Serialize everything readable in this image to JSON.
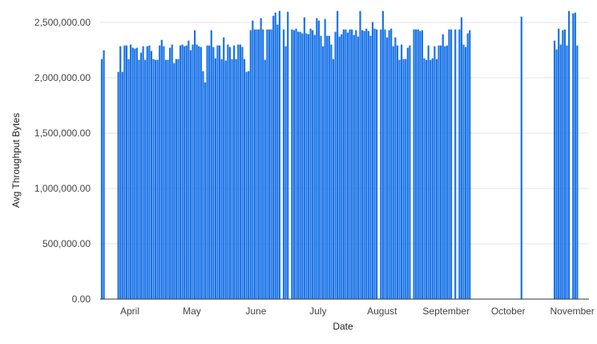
{
  "chart_data": {
    "type": "bar",
    "title": "",
    "xlabel": "Date",
    "ylabel": "Avg Throughput Bytes",
    "ylim": [
      0,
      2600000
    ],
    "grid": true,
    "legend": "none",
    "bar_color": "#1a73e8",
    "x_unit": "day index (0 = first bar, ~Mar 18)",
    "y_ticks": [
      {
        "value": 0,
        "label": "0.00"
      },
      {
        "value": 500000,
        "label": "500,000.00"
      },
      {
        "value": 1000000,
        "label": "1,000,000.00"
      },
      {
        "value": 1500000,
        "label": "1,500,000.00"
      },
      {
        "value": 2000000,
        "label": "2,000,000.00"
      },
      {
        "value": 2500000,
        "label": "2,500,000.00"
      }
    ],
    "x_ticks": [
      {
        "day": 14,
        "label": "April"
      },
      {
        "day": 44,
        "label": "May"
      },
      {
        "day": 75,
        "label": "June"
      },
      {
        "day": 105,
        "label": "July"
      },
      {
        "day": 136,
        "label": "August"
      },
      {
        "day": 167,
        "label": "September"
      },
      {
        "day": 197,
        "label": "October"
      },
      {
        "day": 228,
        "label": "November"
      }
    ],
    "values": [
      2169000,
      2249000,
      null,
      null,
      null,
      null,
      null,
      null,
      2053000,
      2285000,
      2053000,
      2292000,
      2292000,
      2169000,
      2300000,
      2271000,
      2263000,
      2271000,
      2162000,
      2227000,
      2285000,
      2162000,
      2285000,
      2292000,
      2242000,
      2169000,
      2162000,
      2162000,
      2292000,
      2343000,
      2285000,
      2162000,
      2162000,
      2271000,
      2300000,
      2133000,
      2169000,
      2169000,
      2292000,
      2300000,
      2285000,
      2292000,
      2336000,
      2249000,
      2300000,
      2430000,
      2300000,
      2285000,
      2278000,
      2060000,
      1959000,
      2292000,
      2292000,
      2430000,
      2278000,
      2176000,
      2292000,
      2292000,
      2169000,
      2365000,
      2155000,
      2300000,
      2278000,
      2169000,
      2292000,
      2169000,
      2300000,
      2300000,
      2278000,
      2169000,
      2053000,
      2060000,
      2430000,
      2517000,
      2437000,
      2437000,
      2437000,
      2539000,
      2437000,
      2162000,
      2437000,
      2437000,
      2437000,
      2560000,
      2589000,
      2481000,
      2604000,
      null,
      2437000,
      2285000,
      2597000,
      null,
      2437000,
      2430000,
      2444000,
      2416000,
      2416000,
      2401000,
      2546000,
      2401000,
      2394000,
      2444000,
      2430000,
      2387000,
      2539000,
      2517000,
      2379000,
      2285000,
      2532000,
      2379000,
      2379000,
      2300000,
      2169000,
      2416000,
      2604000,
      2372000,
      2394000,
      2437000,
      2437000,
      2408000,
      2437000,
      2437000,
      2387000,
      2430000,
      2372000,
      2604000,
      2430000,
      2423000,
      2444000,
      2423000,
      2379000,
      2504000,
      2444000,
      2437000,
      null,
      2437000,
      2604000,
      2437000,
      2365000,
      2430000,
      2444000,
      2285000,
      2365000,
      2292000,
      2162000,
      2300000,
      2169000,
      2169000,
      2271000,
      2292000,
      null,
      2437000,
      2437000,
      2437000,
      2423000,
      2430000,
      2176000,
      2162000,
      2292000,
      2162000,
      2176000,
      2285000,
      2169000,
      2292000,
      2292000,
      2394000,
      2285000,
      2292000,
      2437000,
      2437000,
      null,
      2437000,
      null,
      2437000,
      2546000,
      2300000,
      2278000,
      2401000,
      2430000,
      null,
      null,
      null,
      null,
      null,
      null,
      null,
      null,
      null,
      null,
      null,
      null,
      null,
      null,
      null,
      null,
      null,
      null,
      null,
      null,
      null,
      null,
      null,
      null,
      2553000,
      null,
      null,
      null,
      null,
      null,
      null,
      null,
      null,
      null,
      null,
      null,
      null,
      null,
      null,
      null,
      2336000,
      2256000,
      2444000,
      2300000,
      2430000,
      2437000,
      2292000,
      2604000,
      null,
      2582000,
      2589000,
      2292000
    ]
  }
}
